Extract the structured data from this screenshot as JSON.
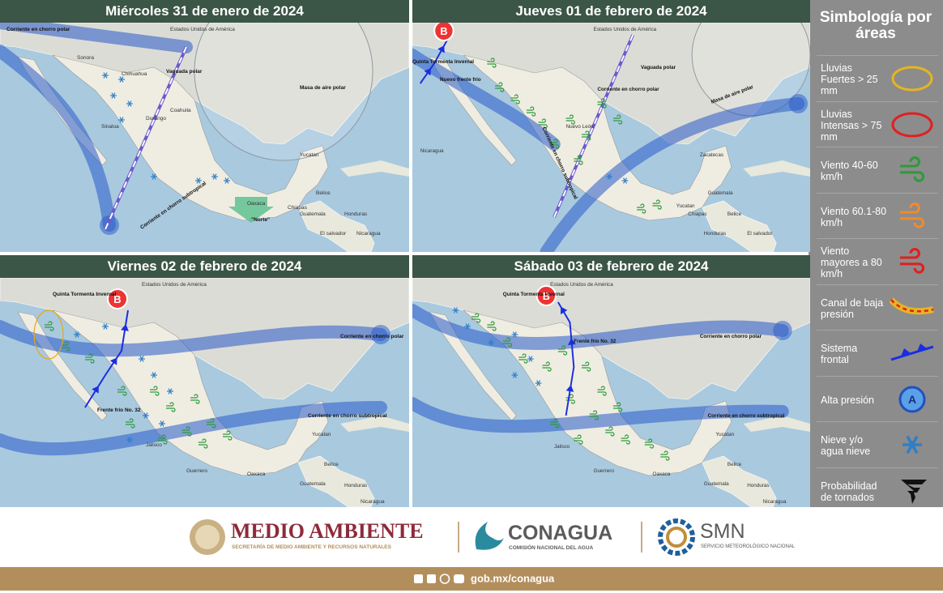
{
  "panels": [
    {
      "title": "Miércoles 31 de enero de 2024",
      "labels": [
        "Estados Unidos de América",
        "Corriente en chorro polar",
        "Vaguada polar",
        "Masa de aire polar",
        "Corriente en chorro subtropical",
        "\"Norte\"",
        "Sonora",
        "Chihuahua",
        "Coahuila",
        "Durango",
        "Sinaloa",
        "Yucatan",
        "Oaxaca",
        "Chiapas",
        "Guatemala",
        "Belice",
        "Honduras",
        "El salvador",
        "Nicaragua"
      ]
    },
    {
      "title": "Jueves 01 de febrero de 2024",
      "low_symbol": "B",
      "labels": [
        "Estados Unidos de América",
        "Quinta Tormenta Invernal",
        "Nuevo frente frío",
        "Vaguada polar",
        "Masa de aire polar",
        "Corriente en chorro subtropical",
        "Corriente en chorro polar",
        "Nuevo León",
        "Zacatecas",
        "Yucatan",
        "Chiapas",
        "Guatemala",
        "Belice",
        "Honduras",
        "El salvador",
        "Nicaragua"
      ]
    },
    {
      "title": "Viernes 02 de febrero de 2024",
      "low_symbol": "B",
      "labels": [
        "Estados Unidos de América",
        "Quinta Tormenta Invernal",
        "Frente frío No. 32",
        "Corriente en chorro polar",
        "Corriente en chorro subtropical",
        "Jalisco",
        "Guerrero",
        "Oaxaca",
        "Yucatan",
        "Guatemala",
        "Belice",
        "Honduras",
        "Nicaragua"
      ]
    },
    {
      "title": "Sábado 03 de febrero de 2024",
      "low_symbol": "B",
      "labels": [
        "Estados Unidos de América",
        "Quinta Tormenta Invernal",
        "Frente frío No. 32",
        "Corriente en chorro polar",
        "Corriente en chorro subtropical",
        "Jalisco",
        "Guerrero",
        "Oaxaca",
        "Yucatan",
        "Guatemala",
        "Belice",
        "Honduras",
        "Nicaragua"
      ]
    }
  ],
  "legend": {
    "title": "Simbología por áreas",
    "high_symbol": "A",
    "items": [
      "Lluvias Fuertes > 25 mm",
      "Lluvias Intensas > 75 mm",
      "Viento 40-60 km/h",
      "Viento 60.1-80 km/h",
      "Viento mayores a 80 km/h",
      "Canal de baja presión",
      "Sistema frontal",
      "Alta presión",
      "Nieve y/o agua nieve",
      "Probabilidad de tornados"
    ]
  },
  "footer": {
    "ministry": "MEDIO AMBIENTE",
    "ministry_sub": "SECRETARÍA DE MEDIO AMBIENTE Y RECURSOS NATURALES",
    "agency": "CONAGUA",
    "agency_sub": "COMISIÓN NACIONAL DEL AGUA",
    "service": "SMN",
    "service_sub": "SERVICIO METEOROLÓGICO NACIONAL",
    "url": "gob.mx/conagua"
  }
}
